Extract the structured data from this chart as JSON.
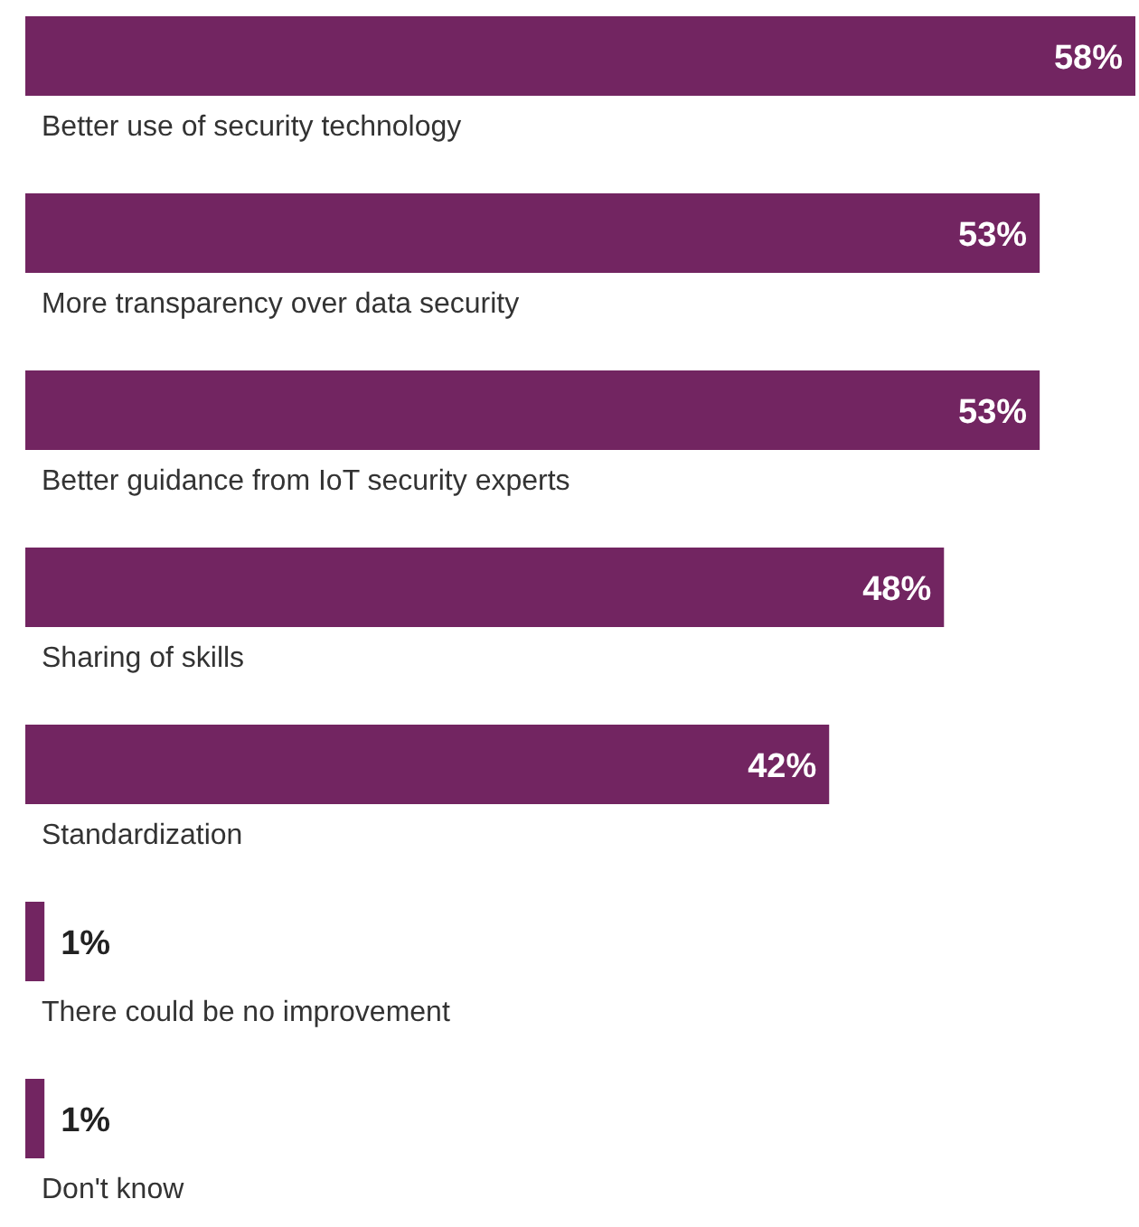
{
  "chart_data": {
    "type": "bar",
    "orientation": "horizontal",
    "categories": [
      "Better use of security technology",
      "More transparency over data security",
      "Better guidance from IoT security experts",
      "Sharing of skills",
      "Standardization",
      "There could be no improvement",
      "Don't know"
    ],
    "values": [
      58,
      53,
      53,
      48,
      42,
      1,
      1
    ],
    "value_labels": [
      "58%",
      "53%",
      "53%",
      "48%",
      "42%",
      "1%",
      "1%"
    ],
    "color": "#722561"
  }
}
